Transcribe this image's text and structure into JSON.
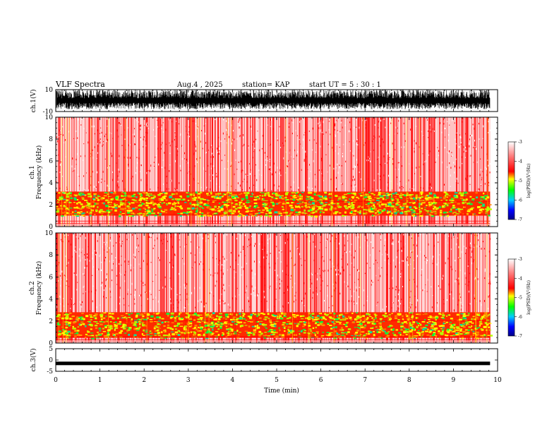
{
  "header": {
    "title": "VLF Spectra",
    "date": "Aug.4  , 2025",
    "station": "station= KAP",
    "start": "start  UT  =   5  : 30 : 1"
  },
  "chart_data": {
    "type": "heatmap",
    "title": "VLF Spectra",
    "xlabel": "Time  (min)",
    "xlim": [
      0,
      10
    ],
    "x_ticks": [
      "0",
      "1",
      "2",
      "3",
      "4",
      "5",
      "6",
      "7",
      "8",
      "9",
      "10"
    ],
    "panels": [
      {
        "name": "ch1-waveform",
        "type": "line",
        "ylabel": "ch.1(V)",
        "ylim": [
          -10,
          10
        ],
        "y_ticks": [
          "10",
          "-10"
        ],
        "description_range": [
          -8,
          10
        ]
      },
      {
        "name": "ch1-spectrogram",
        "type": "heatmap",
        "ylabel_line1": "ch.1",
        "ylabel_line2": "Frequency  (kHz)",
        "ylim": [
          0,
          10
        ],
        "y_ticks": [
          "0",
          "2",
          "4",
          "6",
          "8",
          "10"
        ],
        "dense_band_khz": [
          1.0,
          3.2
        ],
        "data_end_min": 9.83
      },
      {
        "name": "ch2-spectrogram",
        "type": "heatmap",
        "ylabel_line1": "ch.2",
        "ylabel_line2": "Frequency  (kHz)",
        "ylim": [
          0,
          10
        ],
        "y_ticks": [
          "0",
          "2",
          "4",
          "6",
          "8",
          "10"
        ],
        "dense_band_khz": [
          0.5,
          2.8
        ],
        "data_end_min": 9.83
      },
      {
        "name": "ch3-waveform",
        "type": "line",
        "ylabel": "ch.3(V)",
        "ylim": [
          -5,
          5
        ],
        "y_ticks": [
          "5",
          "0",
          "-5"
        ],
        "level": -1.5
      }
    ],
    "colorbar": {
      "label": "log(PSD)(V²/Hz)",
      "range": [
        -7,
        -3
      ],
      "ticks": [
        "-3",
        "-4",
        "-5",
        "-6",
        "-7"
      ],
      "colors": [
        "#000088",
        "#0000ff",
        "#00ffff",
        "#00ff00",
        "#ffff00",
        "#ff0000",
        "#ffffff"
      ]
    }
  }
}
